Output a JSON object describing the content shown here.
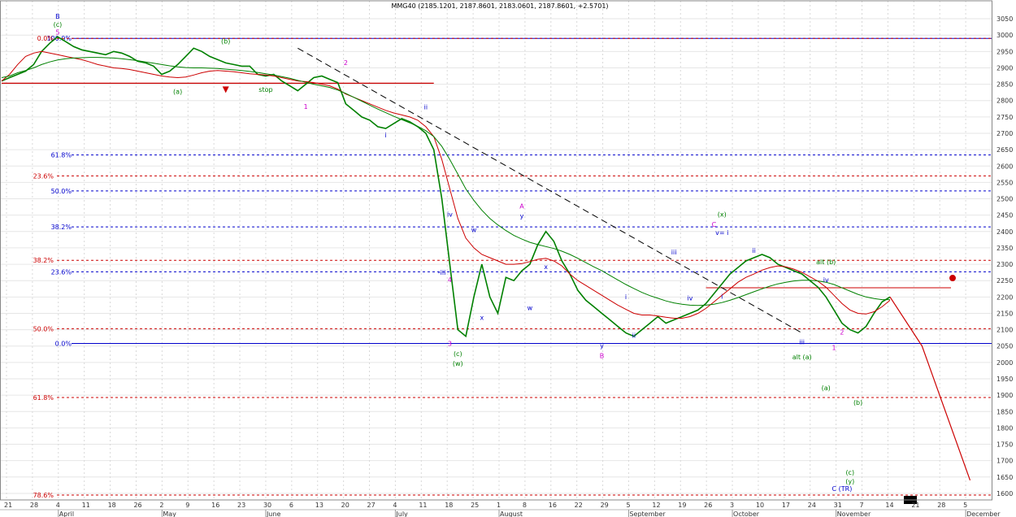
{
  "chart_data": {
    "type": "line",
    "title": "MMG40 (2185.1201, 2187.8601, 2183.0601, 2187.8601, +2.5701)",
    "ylim": [
      1580,
      3070
    ],
    "y_ticks": [
      1600,
      1650,
      1700,
      1750,
      1800,
      1850,
      1900,
      1950,
      2000,
      2050,
      2100,
      2150,
      2200,
      2250,
      2300,
      2350,
      2400,
      2450,
      2500,
      2550,
      2600,
      2650,
      2700,
      2750,
      2800,
      2850,
      2900,
      2950,
      3000,
      3050
    ],
    "x_day_labels": [
      "21",
      "28",
      "4",
      "11",
      "18",
      "26",
      "2",
      "9",
      "16",
      "23",
      "30",
      "6",
      "13",
      "20",
      "27",
      "4",
      "11",
      "18",
      "25",
      "1",
      "8",
      "16",
      "22",
      "29",
      "5",
      "12",
      "19",
      "26",
      "3",
      "10",
      "17",
      "24",
      "31",
      "7",
      "14",
      "21",
      "28",
      "5"
    ],
    "x_month_labels": [
      "April",
      "May",
      "June",
      "July",
      "August",
      "September",
      "October",
      "November",
      "December"
    ],
    "grid": true,
    "series": [
      {
        "name": "",
        "color": "#008000",
        "values": [
          2860,
          2870,
          2880,
          2890,
          2910,
          2950,
          2975,
          2995,
          2980,
          2965,
          2955,
          2950,
          2945,
          2940,
          2950,
          2945,
          2935,
          2920,
          2915,
          2905,
          2880,
          2890,
          2910,
          2935,
          2960,
          2950,
          2935,
          2925,
          2915,
          2910,
          2905,
          2905,
          2880,
          2875,
          2880,
          2860,
          2845,
          2830,
          2850,
          2870,
          2875,
          2865,
          2855,
          2790,
          2770,
          2750,
          2740,
          2720,
          2715,
          2730,
          2745,
          2735,
          2720,
          2700,
          2650,
          2500,
          2300,
          2100,
          2080,
          2200,
          2300,
          2200,
          2150,
          2260,
          2250,
          2280,
          2300,
          2360,
          2400,
          2370,
          2310,
          2270,
          2220,
          2190,
          2170,
          2150,
          2130,
          2110,
          2090,
          2080,
          2100,
          2120,
          2140,
          2120,
          2130,
          2140,
          2150,
          2160,
          2180,
          2210,
          2240,
          2270,
          2290,
          2310,
          2320,
          2330,
          2320,
          2300,
          2290,
          2280,
          2270,
          2250,
          2230,
          2200,
          2160,
          2120,
          2100,
          2090,
          2110,
          2150,
          2185,
          2200
        ]
      },
      {
        "name": "",
        "color": "#cc0000",
        "values": [
          2860,
          2880,
          2910,
          2935,
          2945,
          2950,
          2945,
          2940,
          2935,
          2930,
          2925,
          2918,
          2910,
          2905,
          2900,
          2898,
          2895,
          2890,
          2885,
          2880,
          2875,
          2872,
          2870,
          2872,
          2878,
          2885,
          2890,
          2892,
          2890,
          2888,
          2885,
          2882,
          2880,
          2878,
          2875,
          2870,
          2865,
          2860,
          2858,
          2855,
          2850,
          2845,
          2835,
          2820,
          2810,
          2800,
          2790,
          2780,
          2770,
          2762,
          2756,
          2750,
          2740,
          2720,
          2690,
          2620,
          2530,
          2440,
          2380,
          2350,
          2330,
          2320,
          2310,
          2300,
          2300,
          2302,
          2308,
          2315,
          2318,
          2310,
          2295,
          2270,
          2250,
          2235,
          2220,
          2205,
          2190,
          2175,
          2162,
          2150,
          2145,
          2145,
          2142,
          2138,
          2135,
          2135,
          2140,
          2150,
          2165,
          2185,
          2205,
          2225,
          2245,
          2260,
          2270,
          2282,
          2290,
          2295,
          2292,
          2285,
          2275,
          2262,
          2248,
          2230,
          2205,
          2180,
          2160,
          2150,
          2148,
          2155,
          2170,
          2190
        ]
      },
      {
        "name": "",
        "color": "#008000",
        "values": [
          2870,
          2875,
          2885,
          2892,
          2900,
          2910,
          2918,
          2924,
          2928,
          2930,
          2931,
          2932,
          2932,
          2931,
          2930,
          2928,
          2925,
          2922,
          2918,
          2914,
          2910,
          2906,
          2903,
          2901,
          2900,
          2900,
          2899,
          2898,
          2896,
          2894,
          2892,
          2889,
          2886,
          2882,
          2878,
          2873,
          2868,
          2862,
          2856,
          2850,
          2845,
          2840,
          2832,
          2822,
          2810,
          2798,
          2786,
          2774,
          2763,
          2752,
          2742,
          2732,
          2721,
          2708,
          2690,
          2660,
          2620,
          2575,
          2530,
          2495,
          2465,
          2440,
          2420,
          2403,
          2388,
          2377,
          2367,
          2360,
          2354,
          2348,
          2340,
          2330,
          2318,
          2305,
          2292,
          2280,
          2266,
          2252,
          2238,
          2226,
          2214,
          2204,
          2196,
          2188,
          2182,
          2178,
          2175,
          2174,
          2175,
          2178,
          2183,
          2190,
          2198,
          2207,
          2216,
          2225,
          2233,
          2240,
          2245,
          2249,
          2251,
          2251,
          2249,
          2245,
          2238,
          2228,
          2218,
          2208,
          2200,
          2195,
          2192,
          2192
        ]
      }
    ],
    "projection": {
      "name": "",
      "color": "#cc0000",
      "points": [
        [
          111,
          2200
        ],
        [
          115,
          2050
        ],
        [
          121,
          1640
        ]
      ]
    },
    "fib_right": [
      {
        "label": "100.0%",
        "y": 2990,
        "color": "#0000cc"
      },
      {
        "label": "61.8%",
        "y": 2634,
        "color": "#0000cc"
      },
      {
        "label": "50.0%",
        "y": 2524,
        "color": "#0000cc"
      },
      {
        "label": "38.2%",
        "y": 2414,
        "color": "#0000cc"
      },
      {
        "label": "23.6%",
        "y": 2277,
        "color": "#0000cc"
      },
      {
        "label": "0.0%",
        "y": 2058,
        "color": "#0000cc"
      }
    ],
    "fib_left": [
      {
        "label": "0.0%",
        "y": 2990,
        "color": "#cc0000"
      },
      {
        "label": "23.6%",
        "y": 2570,
        "color": "#cc0000"
      },
      {
        "label": "38.2%",
        "y": 2312,
        "color": "#cc0000"
      },
      {
        "label": "50.0%",
        "y": 2103,
        "color": "#cc0000"
      },
      {
        "label": "61.8%",
        "y": 1893,
        "color": "#cc0000"
      },
      {
        "label": "78.6%",
        "y": 1595,
        "color": "#cc0000"
      }
    ],
    "stop_line": {
      "label": "stop",
      "y": 2853,
      "x0": 0,
      "x1": 54
    },
    "target_line": {
      "y": 2228,
      "x0": 88,
      "x1": 121
    },
    "wave_labels": [
      {
        "t": "B",
        "x": 7,
        "y": 3050,
        "color": "#0000cc"
      },
      {
        "t": "(c)",
        "x": 7,
        "y": 3025,
        "color": "#008000"
      },
      {
        "t": "5",
        "x": 7,
        "y": 3002,
        "color": "#cc00cc"
      },
      {
        "t": "(b)",
        "x": 28,
        "y": 2975,
        "color": "#008000"
      },
      {
        "t": "(a)",
        "x": 22,
        "y": 2820,
        "color": "#008000"
      },
      {
        "t": "stop",
        "x": 33,
        "y": 2827,
        "color": "#008000"
      },
      {
        "t": "2",
        "x": 43,
        "y": 2908,
        "color": "#cc00cc"
      },
      {
        "t": "1",
        "x": 38,
        "y": 2775,
        "color": "#cc00cc"
      },
      {
        "t": "ii",
        "x": 53,
        "y": 2773,
        "color": "#0000cc"
      },
      {
        "t": "i",
        "x": 48,
        "y": 2688,
        "color": "#0000cc"
      },
      {
        "t": "iv",
        "x": 56,
        "y": 2445,
        "color": "#0000cc"
      },
      {
        "t": "-iii",
        "x": 55,
        "y": 2268,
        "color": "#0000cc"
      },
      {
        "t": "4",
        "x": 56,
        "y": 2245,
        "color": "#cc00cc"
      },
      {
        "t": "3",
        "x": 56,
        "y": 2050,
        "color": "#cc00cc"
      },
      {
        "t": "(c)",
        "x": 57,
        "y": 2020,
        "color": "#008000"
      },
      {
        "t": "(w)",
        "x": 57,
        "y": 1990,
        "color": "#008000"
      },
      {
        "t": "w",
        "x": 59,
        "y": 2398,
        "color": "#0000cc"
      },
      {
        "t": "x",
        "x": 60,
        "y": 2130,
        "color": "#0000cc"
      },
      {
        "t": "A",
        "x": 65,
        "y": 2470,
        "color": "#cc00cc"
      },
      {
        "t": "y",
        "x": 65,
        "y": 2440,
        "color": "#0000cc"
      },
      {
        "t": "x",
        "x": 68,
        "y": 2285,
        "color": "#0000cc"
      },
      {
        "t": "w",
        "x": 66,
        "y": 2160,
        "color": "#0000cc"
      },
      {
        "t": "i",
        "x": 78,
        "y": 2193,
        "color": "#0000cc"
      },
      {
        "t": "ii",
        "x": 79,
        "y": 2075,
        "color": "#0000cc"
      },
      {
        "t": "y",
        "x": 75,
        "y": 2045,
        "color": "#0000cc"
      },
      {
        "t": "B",
        "x": 75,
        "y": 2013,
        "color": "#cc00cc"
      },
      {
        "t": "iii",
        "x": 84,
        "y": 2330,
        "color": "#0000cc"
      },
      {
        "t": "iv",
        "x": 86,
        "y": 2190,
        "color": "#0000cc"
      },
      {
        "t": "(x)",
        "x": 90,
        "y": 2445,
        "color": "#008000"
      },
      {
        "t": "C",
        "x": 89,
        "y": 2415,
        "color": "#cc00cc"
      },
      {
        "t": "v= i",
        "x": 90,
        "y": 2390,
        "color": "#0000cc"
      },
      {
        "t": "i",
        "x": 90,
        "y": 2195,
        "color": "#0000cc"
      },
      {
        "t": "ii",
        "x": 94,
        "y": 2335,
        "color": "#0000cc"
      },
      {
        "t": "alt (b)",
        "x": 103,
        "y": 2300,
        "color": "#008000"
      },
      {
        "t": "iv",
        "x": 103,
        "y": 2245,
        "color": "#0000cc"
      },
      {
        "t": "iii",
        "x": 100,
        "y": 2055,
        "color": "#0000cc"
      },
      {
        "t": "alt (a)",
        "x": 100,
        "y": 2010,
        "color": "#008000"
      },
      {
        "t": "1",
        "x": 104,
        "y": 2038,
        "color": "#cc00cc"
      },
      {
        "t": "2",
        "x": 105,
        "y": 2085,
        "color": "#cc00cc"
      },
      {
        "t": "(a)",
        "x": 103,
        "y": 1915,
        "color": "#008000"
      },
      {
        "t": "(b)",
        "x": 107,
        "y": 1870,
        "color": "#008000"
      },
      {
        "t": "(c)",
        "x": 106,
        "y": 1657,
        "color": "#008000"
      },
      {
        "t": "(y)",
        "x": 106,
        "y": 1630,
        "color": "#008000"
      },
      {
        "t": "C (TR)",
        "x": 105,
        "y": 1607,
        "color": "#0000cc"
      }
    ]
  }
}
